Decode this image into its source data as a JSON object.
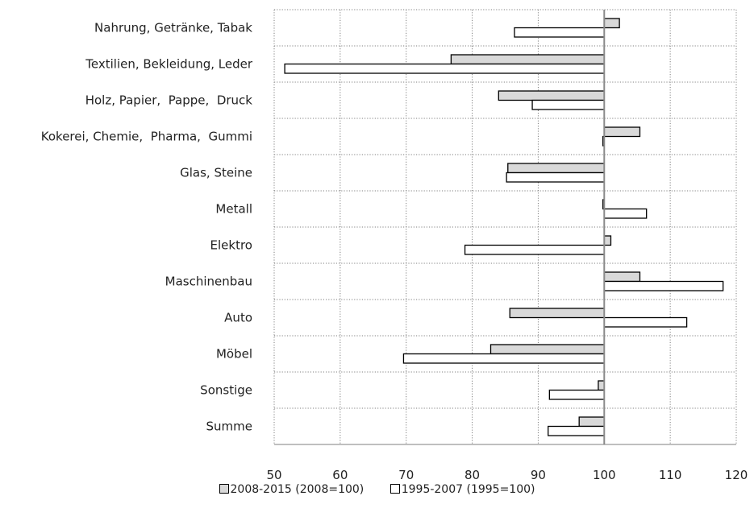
{
  "chart_data": {
    "type": "bar",
    "orientation": "horizontal",
    "categories": [
      "Nahrung, Getränke, Tabak",
      "Textilien, Bekleidung, Leder",
      "Holz, Papier,  Pappe,  Druck",
      "Kokerei, Chemie,  Pharma,  Gummi",
      "Glas, Steine",
      "Metall",
      "Elektro",
      "Maschinenbau",
      "Auto",
      "Möbel",
      "Sonstige",
      "Summe"
    ],
    "series": [
      {
        "name": "2008-2015 (2008=100)",
        "color": "#d9d9d9",
        "values": [
          102.3,
          76.8,
          84.0,
          105.4,
          85.4,
          99.8,
          101.0,
          105.4,
          85.7,
          82.8,
          99.1,
          96.2
        ]
      },
      {
        "name": "1995-2007 (1995=100)",
        "color": "#ffffff",
        "values": [
          86.4,
          51.6,
          89.1,
          99.8,
          85.2,
          106.4,
          78.9,
          118.0,
          112.5,
          69.6,
          91.7,
          91.5
        ]
      }
    ],
    "xlim": [
      50,
      120
    ],
    "xticks": [
      "50",
      "60",
      "70",
      "80",
      "90",
      "100",
      "110",
      "120"
    ],
    "baseline": 100,
    "grid": true,
    "legend": "bottom"
  }
}
